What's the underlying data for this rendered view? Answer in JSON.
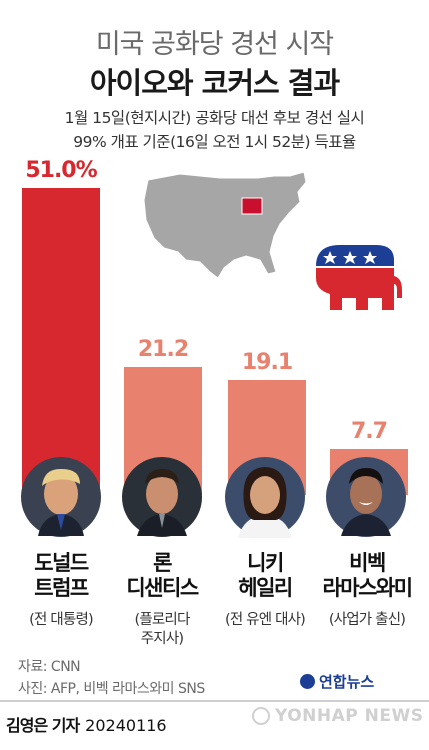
{
  "header": {
    "title_line1": "미국 공화당 경선 시작",
    "title_line2": "아이오와 코커스 결과",
    "subtitle_line1": "1월 15일(현지시간) 공화당 대선 후보 경선 실시",
    "subtitle_line2": "99% 개표 기준(16일 오전 1시 52분) 득표율"
  },
  "chart_data": {
    "type": "bar",
    "categories": [
      "도널드 트럼프",
      "론 디샌티스",
      "니키 헤일리",
      "비벡 라마스와미"
    ],
    "values": [
      51.0,
      21.2,
      19.1,
      7.7
    ],
    "value_labels": [
      "51.0%",
      "21.2",
      "19.1",
      "7.7"
    ],
    "ylim": [
      0,
      51.0
    ]
  },
  "candidates": [
    {
      "name_line1": "도널드",
      "name_line2": "트럼프",
      "role_line1": "(전 대통령)",
      "role_line2": ""
    },
    {
      "name_line1": "론",
      "name_line2": "디샌티스",
      "role_line1": "(플로리다",
      "role_line2": "주지사)"
    },
    {
      "name_line1": "니키",
      "name_line2": "헤일리",
      "role_line1": "(전 유엔 대사)",
      "role_line2": ""
    },
    {
      "name_line1": "비벡",
      "name_line2": "라마스와미",
      "role_line1": "(사업가 출신)",
      "role_line2": ""
    }
  ],
  "colors": {
    "winner_bar": "#d7282f",
    "other_bar": "#e8826f",
    "map_fill": "#a6a6a6",
    "iowa": "#c8102e",
    "gop_blue": "#1c3f95",
    "gop_red": "#d7282f"
  },
  "icons": {
    "map": "us-map-iowa-highlight",
    "party": "gop-elephant-icon"
  },
  "source": {
    "data": "자료: CNN",
    "photo": "사진: AFP, 비벡 라마스와미 SNS"
  },
  "credit": {
    "author": "김영은 기자",
    "date": "20240116",
    "agency_logo": "연합뉴스",
    "watermark": "YONHAP NEWS"
  }
}
